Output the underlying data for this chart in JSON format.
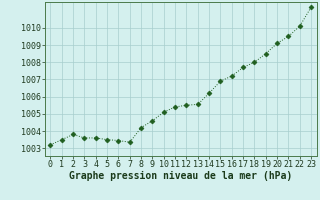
{
  "x": [
    0,
    1,
    2,
    3,
    4,
    5,
    6,
    7,
    8,
    9,
    10,
    11,
    12,
    13,
    14,
    15,
    16,
    17,
    18,
    19,
    20,
    21,
    22,
    23
  ],
  "y": [
    1003.2,
    1003.5,
    1003.8,
    1003.6,
    1003.6,
    1003.5,
    1003.45,
    1003.35,
    1004.2,
    1004.6,
    1005.1,
    1005.4,
    1005.5,
    1005.55,
    1006.2,
    1006.9,
    1007.2,
    1007.7,
    1008.0,
    1008.5,
    1009.1,
    1009.5,
    1010.1,
    1011.2
  ],
  "yticks": [
    1003,
    1004,
    1005,
    1006,
    1007,
    1008,
    1009,
    1010
  ],
  "xticks": [
    0,
    1,
    2,
    3,
    4,
    5,
    6,
    7,
    8,
    9,
    10,
    11,
    12,
    13,
    14,
    15,
    16,
    17,
    18,
    19,
    20,
    21,
    22,
    23
  ],
  "xlabel": "Graphe pression niveau de la mer (hPa)",
  "line_color": "#1f5e1f",
  "marker_color": "#1f5e1f",
  "bg_color": "#d4f0ee",
  "grid_color": "#a8cece",
  "spine_color": "#4a7a4a",
  "xlabel_fontsize": 7,
  "tick_fontsize": 6,
  "ylim_low": 1002.55,
  "ylim_high": 1011.5
}
